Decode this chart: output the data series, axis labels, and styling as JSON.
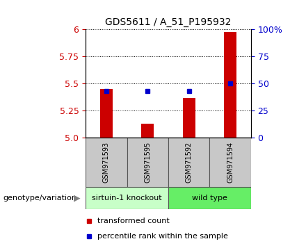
{
  "title": "GDS5611 / A_51_P195932",
  "samples": [
    "GSM971593",
    "GSM971595",
    "GSM971592",
    "GSM971594"
  ],
  "groups": [
    {
      "label": "sirtuin-1 knockout",
      "color": "#c8ffc8",
      "indices": [
        0,
        1
      ]
    },
    {
      "label": "wild type",
      "color": "#66ee66",
      "indices": [
        2,
        3
      ]
    }
  ],
  "bar_values": [
    5.45,
    5.13,
    5.37,
    5.98
  ],
  "blue_values": [
    5.43,
    5.43,
    5.43,
    5.5
  ],
  "ymin": 5.0,
  "ymax": 6.0,
  "yticks_left": [
    5.0,
    5.25,
    5.5,
    5.75,
    6.0
  ],
  "yticks_right": [
    0,
    25,
    50,
    75,
    100
  ],
  "bar_color": "#cc0000",
  "blue_color": "#0000cc",
  "background_plot": "#ffffff",
  "tick_label_color_left": "#cc0000",
  "tick_label_color_right": "#0000cc",
  "legend_red": "transformed count",
  "legend_blue": "percentile rank within the sample",
  "group_label": "genotype/variation",
  "sample_box_color": "#c8c8c8",
  "group_box_color_1": "#aaffaa",
  "group_box_color_2": "#66ee66",
  "right_labels": [
    "0",
    "25",
    "50",
    "75",
    "100%"
  ]
}
